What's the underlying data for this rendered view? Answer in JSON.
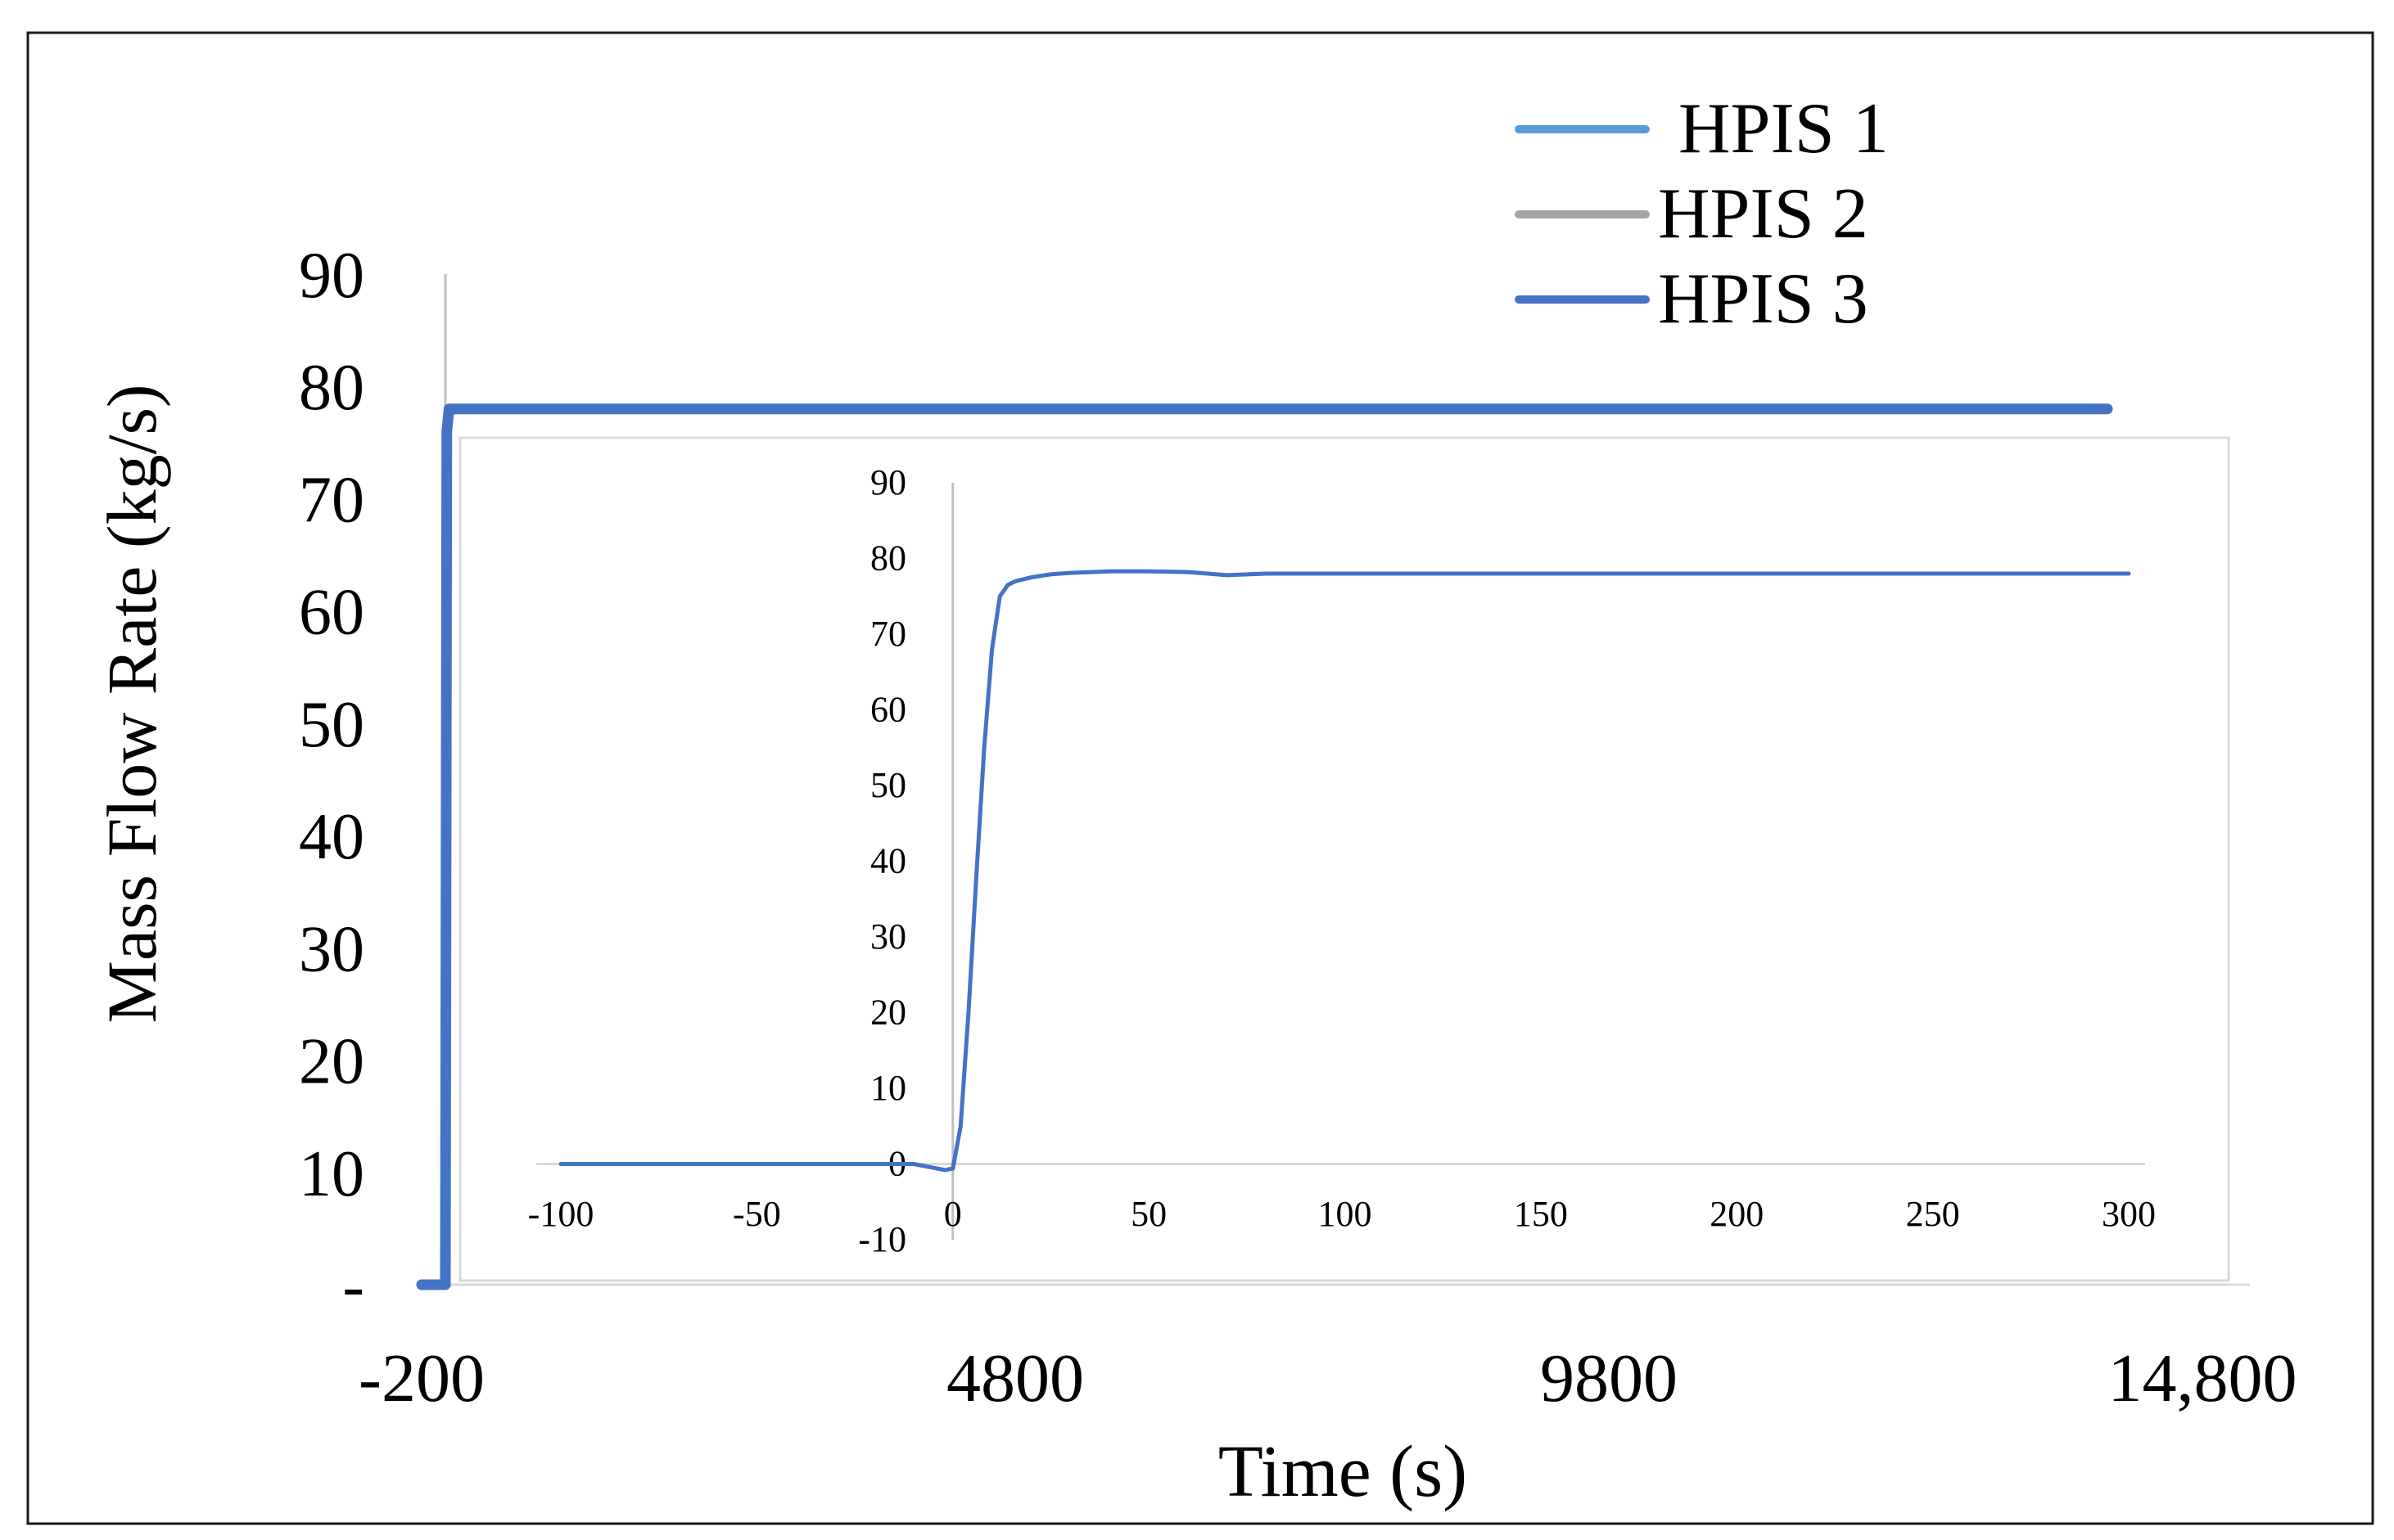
{
  "chart_data": [
    {
      "id": "main",
      "type": "line",
      "title": "",
      "xlabel": "Time (s)",
      "ylabel": "Mass Flow Rate (kg/s)",
      "xlim": [
        -200,
        14800
      ],
      "ylim": [
        0,
        90
      ],
      "x_ticks": [
        {
          "value": -200,
          "label": "-200"
        },
        {
          "value": 4800,
          "label": "4800"
        },
        {
          "value": 9800,
          "label": "9800"
        },
        {
          "value": 14800,
          "label": "14,800"
        }
      ],
      "y_ticks": [
        {
          "value": 0,
          "label": "-"
        },
        {
          "value": 10,
          "label": "10"
        },
        {
          "value": 20,
          "label": "20"
        },
        {
          "value": 30,
          "label": "30"
        },
        {
          "value": 40,
          "label": "40"
        },
        {
          "value": 50,
          "label": "50"
        },
        {
          "value": 60,
          "label": "60"
        },
        {
          "value": 70,
          "label": "70"
        },
        {
          "value": 80,
          "label": "80"
        },
        {
          "value": 90,
          "label": "90"
        }
      ],
      "grid": false,
      "legend_position": "top-right",
      "series": [
        {
          "name": "HPIS 1",
          "color": "#5b9bd5",
          "x": [
            -200,
            -100,
            -10,
            0,
            12,
            30,
            100,
            14000
          ],
          "y": [
            0,
            0,
            0,
            0,
            76,
            78,
            78,
            78
          ]
        },
        {
          "name": "HPIS 2",
          "color": "#a5a5a5",
          "x": [
            -200,
            -100,
            -10,
            0,
            12,
            30,
            100,
            14000
          ],
          "y": [
            0,
            0,
            0,
            0,
            76,
            78,
            78,
            78
          ]
        },
        {
          "name": "HPIS 3",
          "color": "#4472c4",
          "x": [
            -200,
            -100,
            -10,
            0,
            12,
            30,
            100,
            14000
          ],
          "y": [
            0,
            0,
            0,
            0,
            76,
            78,
            78,
            78
          ]
        }
      ]
    },
    {
      "id": "inset",
      "type": "line",
      "title": "",
      "xlabel": "",
      "ylabel": "",
      "xlim": [
        -100,
        300
      ],
      "ylim": [
        -10,
        90
      ],
      "x_ticks": [
        {
          "value": -100,
          "label": "-100"
        },
        {
          "value": -50,
          "label": "-50"
        },
        {
          "value": 0,
          "label": "0"
        },
        {
          "value": 50,
          "label": "50"
        },
        {
          "value": 100,
          "label": "100"
        },
        {
          "value": 150,
          "label": "150"
        },
        {
          "value": 200,
          "label": "200"
        },
        {
          "value": 250,
          "label": "250"
        },
        {
          "value": 300,
          "label": "300"
        }
      ],
      "y_ticks": [
        {
          "value": -10,
          "label": "-10"
        },
        {
          "value": 0,
          "label": "0"
        },
        {
          "value": 10,
          "label": "10"
        },
        {
          "value": 20,
          "label": "20"
        },
        {
          "value": 30,
          "label": "30"
        },
        {
          "value": 40,
          "label": "40"
        },
        {
          "value": 50,
          "label": "50"
        },
        {
          "value": 60,
          "label": "60"
        },
        {
          "value": 70,
          "label": "70"
        },
        {
          "value": 80,
          "label": "80"
        },
        {
          "value": 90,
          "label": "90"
        }
      ],
      "grid": false,
      "series": [
        {
          "color": "#4472c4",
          "x": [
            -100,
            -50,
            -10,
            -5,
            -2,
            0,
            2,
            4,
            6,
            8,
            10,
            12,
            14,
            16,
            20,
            25,
            30,
            40,
            50,
            60,
            70,
            80,
            90,
            100,
            150,
            200,
            250,
            300
          ],
          "y": [
            0,
            0,
            0,
            -0.5,
            -0.8,
            -0.6,
            5,
            20,
            38,
            55,
            68,
            75,
            76.5,
            77,
            77.5,
            77.9,
            78.1,
            78.3,
            78.3,
            78.2,
            77.8,
            78,
            78,
            78,
            78,
            78,
            78,
            78
          ]
        }
      ]
    }
  ]
}
